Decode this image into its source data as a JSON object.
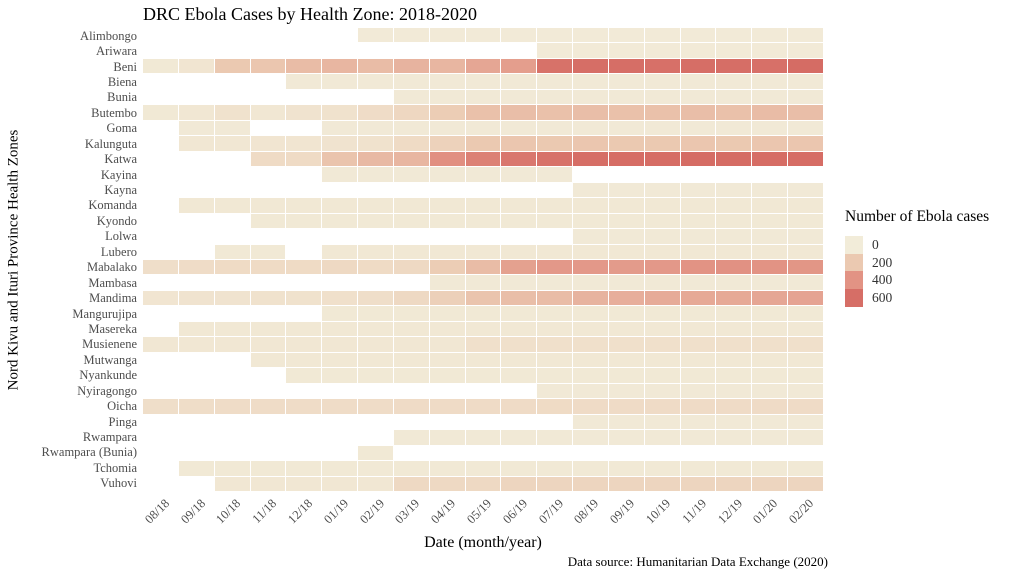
{
  "title": "DRC Ebola Cases by Health Zone: 2018-2020",
  "x_axis": {
    "label": "Date (month/year)"
  },
  "y_axis": {
    "label": "Nord Kivu and Ituri Province Health Zones"
  },
  "caption": "Data source: Humanitarian Data Exchange (2020)",
  "legend": {
    "title": "Number of Ebola cases",
    "entries": [
      {
        "label": "0",
        "color": "#f2ecd9"
      },
      {
        "label": "200",
        "color": "#ebc9b1"
      },
      {
        "label": "400",
        "color": "#e29384"
      },
      {
        "label": "600",
        "color": "#d66e66"
      }
    ]
  },
  "chart_data": {
    "type": "heatmap",
    "x": [
      "08/18",
      "09/18",
      "10/18",
      "11/18",
      "12/18",
      "01/19",
      "02/19",
      "03/19",
      "04/19",
      "05/19",
      "06/19",
      "07/19",
      "08/19",
      "09/19",
      "10/19",
      "11/19",
      "12/19",
      "01/20",
      "02/20"
    ],
    "x_axis_label": "Date (month/year)",
    "y_axis_label": "Nord Kivu and Ituri Province Health Zones",
    "title": "DRC Ebola Cases by Health Zone: 2018-2020",
    "legend_position": "right",
    "grid": false,
    "na_color": "transparent",
    "color_scale_stops": [
      [
        0,
        "#f2ecd9"
      ],
      [
        200,
        "#ebc9b1"
      ],
      [
        400,
        "#e29384"
      ],
      [
        600,
        "#d66e66"
      ],
      [
        700,
        "#d2625c"
      ]
    ],
    "rows": [
      {
        "zone": "Alimbongo",
        "values": [
          null,
          null,
          null,
          null,
          null,
          null,
          10,
          10,
          10,
          10,
          10,
          10,
          10,
          10,
          10,
          10,
          10,
          10,
          10
        ]
      },
      {
        "zone": "Ariwara",
        "values": [
          null,
          null,
          null,
          null,
          null,
          null,
          null,
          null,
          null,
          null,
          null,
          10,
          10,
          10,
          10,
          10,
          10,
          10,
          10
        ]
      },
      {
        "zone": "Beni",
        "values": [
          20,
          40,
          200,
          210,
          250,
          270,
          250,
          280,
          270,
          330,
          360,
          580,
          600,
          600,
          590,
          600,
          600,
          590,
          620
        ]
      },
      {
        "zone": "Biena",
        "values": [
          null,
          null,
          null,
          null,
          15,
          15,
          15,
          15,
          15,
          15,
          15,
          15,
          15,
          15,
          15,
          15,
          15,
          15,
          15
        ]
      },
      {
        "zone": "Bunia",
        "values": [
          null,
          null,
          null,
          null,
          null,
          null,
          null,
          15,
          15,
          15,
          15,
          15,
          15,
          15,
          15,
          15,
          15,
          15,
          15
        ]
      },
      {
        "zone": "Butembo",
        "values": [
          20,
          30,
          60,
          30,
          50,
          60,
          90,
          120,
          180,
          230,
          240,
          230,
          240,
          230,
          230,
          240,
          230,
          250,
          240
        ]
      },
      {
        "zone": "Goma",
        "values": [
          null,
          15,
          15,
          null,
          null,
          15,
          15,
          15,
          15,
          15,
          15,
          15,
          15,
          15,
          15,
          15,
          15,
          15,
          15
        ]
      },
      {
        "zone": "Kalunguta",
        "values": [
          null,
          30,
          30,
          40,
          40,
          50,
          60,
          100,
          150,
          200,
          210,
          200,
          210,
          200,
          200,
          210,
          200,
          210,
          210
        ]
      },
      {
        "zone": "Katwa",
        "values": [
          null,
          null,
          null,
          100,
          100,
          220,
          260,
          270,
          420,
          500,
          550,
          580,
          600,
          610,
          610,
          620,
          620,
          610,
          610
        ]
      },
      {
        "zone": "Kayina",
        "values": [
          null,
          null,
          null,
          null,
          null,
          15,
          15,
          15,
          15,
          15,
          15,
          15,
          null,
          null,
          null,
          null,
          null,
          null,
          null
        ]
      },
      {
        "zone": "Kayna",
        "values": [
          null,
          null,
          null,
          null,
          null,
          null,
          null,
          null,
          null,
          null,
          null,
          null,
          15,
          15,
          15,
          15,
          15,
          15,
          15
        ]
      },
      {
        "zone": "Komanda",
        "values": [
          null,
          25,
          25,
          25,
          25,
          25,
          25,
          25,
          25,
          25,
          25,
          25,
          25,
          25,
          25,
          25,
          25,
          25,
          25
        ]
      },
      {
        "zone": "Kyondo",
        "values": [
          null,
          null,
          null,
          20,
          20,
          20,
          20,
          20,
          20,
          20,
          20,
          20,
          20,
          20,
          20,
          20,
          20,
          20,
          20
        ]
      },
      {
        "zone": "Lolwa",
        "values": [
          null,
          null,
          null,
          null,
          null,
          null,
          null,
          null,
          null,
          null,
          null,
          null,
          15,
          15,
          15,
          15,
          15,
          15,
          15
        ]
      },
      {
        "zone": "Lubero",
        "values": [
          null,
          null,
          20,
          20,
          null,
          25,
          25,
          25,
          25,
          25,
          25,
          25,
          25,
          25,
          25,
          25,
          25,
          25,
          25
        ]
      },
      {
        "zone": "Mabalako",
        "values": [
          80,
          90,
          100,
          100,
          100,
          110,
          100,
          110,
          180,
          250,
          350,
          380,
          380,
          370,
          380,
          400,
          410,
          400,
          390
        ]
      },
      {
        "zone": "Mambasa",
        "values": [
          null,
          null,
          null,
          null,
          null,
          null,
          null,
          null,
          15,
          15,
          15,
          15,
          15,
          15,
          15,
          15,
          15,
          15,
          15
        ]
      },
      {
        "zone": "Mandima",
        "values": [
          40,
          50,
          50,
          60,
          60,
          70,
          80,
          110,
          160,
          220,
          240,
          250,
          280,
          300,
          310,
          320,
          320,
          330,
          340
        ]
      },
      {
        "zone": "Mangurujipa",
        "values": [
          null,
          null,
          null,
          null,
          null,
          20,
          20,
          20,
          20,
          20,
          20,
          20,
          20,
          20,
          20,
          20,
          20,
          20,
          20
        ]
      },
      {
        "zone": "Masereka",
        "values": [
          null,
          25,
          25,
          25,
          25,
          25,
          25,
          25,
          25,
          25,
          25,
          25,
          25,
          25,
          25,
          25,
          25,
          25,
          25
        ]
      },
      {
        "zone": "Musienene",
        "values": [
          30,
          30,
          30,
          30,
          30,
          30,
          30,
          30,
          30,
          70,
          70,
          70,
          70,
          70,
          70,
          70,
          70,
          70,
          70
        ]
      },
      {
        "zone": "Mutwanga",
        "values": [
          null,
          null,
          null,
          25,
          25,
          25,
          25,
          25,
          25,
          25,
          25,
          25,
          25,
          25,
          25,
          25,
          25,
          25,
          25
        ]
      },
      {
        "zone": "Nyankunde",
        "values": [
          null,
          null,
          null,
          null,
          20,
          20,
          20,
          20,
          20,
          20,
          20,
          20,
          20,
          20,
          20,
          20,
          20,
          20,
          20
        ]
      },
      {
        "zone": "Nyiragongo",
        "values": [
          null,
          null,
          null,
          null,
          null,
          null,
          null,
          null,
          null,
          null,
          null,
          15,
          15,
          15,
          15,
          15,
          15,
          15,
          15
        ]
      },
      {
        "zone": "Oicha",
        "values": [
          80,
          85,
          90,
          90,
          90,
          90,
          90,
          95,
          95,
          95,
          95,
          100,
          95,
          95,
          95,
          95,
          95,
          95,
          95
        ]
      },
      {
        "zone": "Pinga",
        "values": [
          null,
          null,
          null,
          null,
          null,
          null,
          null,
          null,
          null,
          null,
          null,
          null,
          15,
          15,
          15,
          15,
          15,
          15,
          15
        ]
      },
      {
        "zone": "Rwampara",
        "values": [
          null,
          null,
          null,
          null,
          null,
          null,
          null,
          15,
          15,
          15,
          15,
          15,
          15,
          15,
          15,
          15,
          15,
          15,
          15
        ]
      },
      {
        "zone": "Rwampara (Bunia)",
        "values": [
          null,
          null,
          null,
          null,
          null,
          null,
          20,
          null,
          null,
          null,
          null,
          null,
          null,
          null,
          null,
          null,
          null,
          null,
          null
        ]
      },
      {
        "zone": "Tchomia",
        "values": [
          null,
          20,
          20,
          20,
          20,
          20,
          20,
          20,
          20,
          20,
          20,
          20,
          20,
          20,
          20,
          20,
          20,
          20,
          20
        ]
      },
      {
        "zone": "Vuhovi",
        "values": [
          null,
          null,
          30,
          30,
          30,
          30,
          30,
          110,
          110,
          110,
          130,
          130,
          130,
          130,
          130,
          130,
          130,
          130,
          130
        ]
      }
    ]
  }
}
